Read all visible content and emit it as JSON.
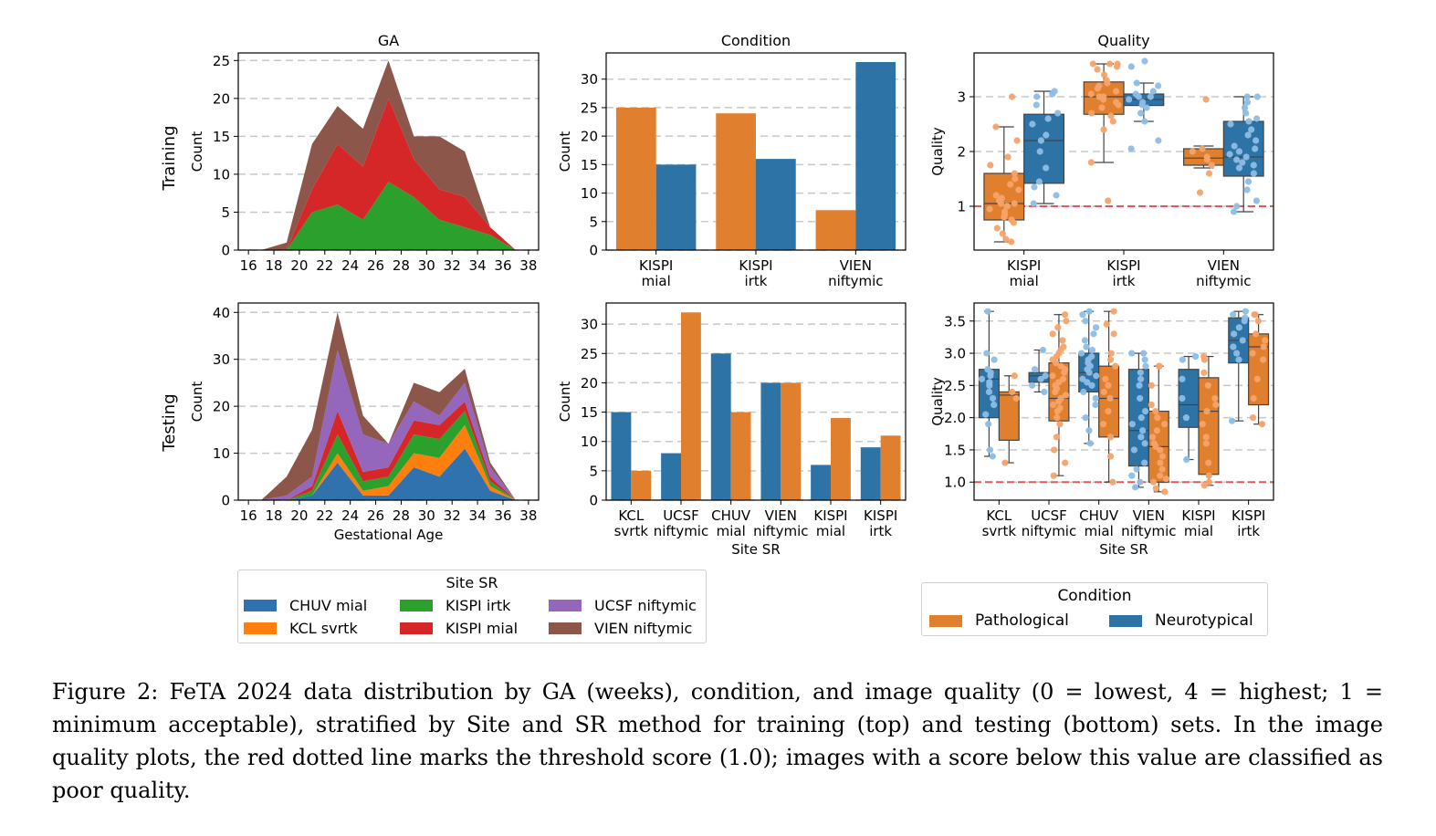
{
  "colors": {
    "pathological": "#e07f2e",
    "neurotypical": "#2e73a6",
    "pathological_points": "#f5a36a",
    "neurotypical_points": "#8dbde6",
    "threshold": "#e05a5a",
    "CHUV mial": "#2f72ad",
    "KCL svrtk": "#ff7f0e",
    "KISPI irtk": "#2ca02c",
    "KISPI mial": "#d62728",
    "UCSF niftymic": "#9467bd",
    "VIEN niftymic": "#8c564b"
  },
  "row_labels": [
    "Training",
    "Testing"
  ],
  "chart_data": [
    {
      "id": "training-ga",
      "type": "area",
      "stacked": true,
      "title": "GA",
      "xlabel": "",
      "ylabel": "Count",
      "x": [
        17,
        19,
        21,
        23,
        25,
        27,
        29,
        31,
        33,
        35,
        37
      ],
      "xticks": [
        16,
        18,
        20,
        22,
        24,
        26,
        28,
        30,
        32,
        34,
        36,
        38
      ],
      "xlim": [
        15.2,
        38.8
      ],
      "yticks": [
        0,
        5,
        10,
        15,
        20,
        25
      ],
      "ylim": [
        0,
        26
      ],
      "grid": "y-dashed",
      "series": [
        {
          "name": "KISPI irtk",
          "values": [
            0,
            0,
            5,
            6,
            4,
            9,
            7,
            4,
            3,
            2,
            0
          ]
        },
        {
          "name": "KISPI mial",
          "values": [
            0,
            0,
            3,
            8,
            7,
            11,
            5,
            4,
            4,
            1,
            0
          ]
        },
        {
          "name": "VIEN niftymic",
          "values": [
            0,
            1,
            6,
            5,
            5,
            5,
            3,
            7,
            6,
            0,
            0
          ]
        }
      ]
    },
    {
      "id": "testing-ga",
      "type": "area",
      "stacked": true,
      "title": "",
      "xlabel": "Gestational Age",
      "ylabel": "Count",
      "x": [
        17,
        19,
        21,
        23,
        25,
        27,
        29,
        31,
        33,
        35,
        37
      ],
      "xticks": [
        16,
        18,
        20,
        22,
        24,
        26,
        28,
        30,
        32,
        34,
        36,
        38
      ],
      "xlim": [
        15.2,
        38.8
      ],
      "yticks": [
        0,
        10,
        20,
        30,
        40
      ],
      "ylim": [
        0,
        42
      ],
      "grid": "y-dashed",
      "series": [
        {
          "name": "CHUV mial",
          "values": [
            0,
            0,
            1,
            8,
            1,
            1,
            7,
            5,
            11,
            2,
            0
          ]
        },
        {
          "name": "KCL svrtk",
          "values": [
            0,
            0,
            0,
            2,
            1,
            2,
            3,
            4,
            5,
            1,
            0
          ]
        },
        {
          "name": "KISPI irtk",
          "values": [
            0,
            0,
            1,
            4,
            2,
            2,
            4,
            4,
            3,
            1,
            0
          ]
        },
        {
          "name": "KISPI mial",
          "values": [
            0,
            0,
            1,
            5,
            2,
            2,
            3,
            3,
            2,
            1,
            0
          ]
        },
        {
          "name": "UCSF niftymic",
          "values": [
            0,
            1,
            2,
            13,
            8,
            5,
            4,
            2,
            4,
            2,
            0
          ]
        },
        {
          "name": "VIEN niftymic",
          "values": [
            0,
            4,
            10,
            8,
            4,
            0,
            4,
            5,
            3,
            1,
            0
          ]
        }
      ]
    },
    {
      "id": "training-condition",
      "type": "bar",
      "title": "Condition",
      "xlabel": "",
      "ylabel": "Count",
      "categories": [
        "KISPI\nmial",
        "KISPI\nirtk",
        "VIEN\nniftymic"
      ],
      "yticks": [
        0,
        5,
        10,
        15,
        20,
        25,
        30
      ],
      "ylim": [
        0,
        34.6
      ],
      "grid": "y-dashed",
      "series": [
        {
          "name": "Pathological",
          "values": [
            25,
            24,
            7
          ]
        },
        {
          "name": "Neurotypical",
          "values": [
            15,
            16,
            33
          ]
        }
      ]
    },
    {
      "id": "testing-condition",
      "type": "bar",
      "title": "",
      "xlabel": "Site SR",
      "ylabel": "Count",
      "categories": [
        "KCL\nsvrtk",
        "UCSF\nniftymic",
        "CHUV\nmial",
        "VIEN\nniftymic",
        "KISPI\nmial",
        "KISPI\nirtk"
      ],
      "yticks": [
        0,
        5,
        10,
        15,
        20,
        25,
        30
      ],
      "ylim": [
        0,
        33.6
      ],
      "grid": "y-dashed",
      "series": [
        {
          "name": "Neurotypical",
          "values": [
            15,
            8,
            25,
            20,
            6,
            9
          ]
        },
        {
          "name": "Pathological",
          "values": [
            5,
            32,
            15,
            20,
            14,
            11
          ]
        }
      ]
    },
    {
      "id": "training-quality",
      "type": "box",
      "title": "Quality",
      "xlabel": "",
      "ylabel": "Quality",
      "categories": [
        "KISPI\nmial",
        "KISPI\nirtk",
        "VIEN\nniftymic"
      ],
      "yticks": [
        1,
        2,
        3
      ],
      "ylim": [
        0.2,
        3.8
      ],
      "threshold": 1.0,
      "grid": "y-dashed",
      "boxes": [
        {
          "category": 0,
          "series": "Pathological",
          "whislo": 0.35,
          "q1": 0.75,
          "med": 1.05,
          "q3": 1.6,
          "whishi": 2.45,
          "points": [
            0.35,
            0.4,
            0.5,
            0.6,
            0.7,
            0.75,
            0.8,
            0.85,
            0.9,
            0.95,
            1.0,
            1.0,
            1.05,
            1.05,
            1.1,
            1.15,
            1.2,
            1.3,
            1.4,
            1.5,
            1.6,
            1.75,
            1.9,
            2.2,
            2.45,
            3.0
          ]
        },
        {
          "category": 0,
          "series": "Neurotypical",
          "whislo": 1.05,
          "q1": 1.42,
          "med": 2.2,
          "q3": 2.68,
          "whishi": 3.1,
          "points": [
            1.05,
            1.2,
            1.35,
            1.45,
            1.7,
            2.0,
            2.2,
            2.3,
            2.5,
            2.6,
            2.7,
            2.85,
            3.0,
            3.05,
            3.1
          ]
        },
        {
          "category": 1,
          "series": "Pathological",
          "whislo": 1.8,
          "q1": 2.68,
          "med": 3.0,
          "q3": 3.27,
          "whishi": 3.6,
          "points": [
            1.1,
            1.8,
            2.4,
            2.55,
            2.65,
            2.7,
            2.8,
            2.85,
            2.9,
            2.95,
            3.0,
            3.0,
            3.05,
            3.1,
            3.15,
            3.2,
            3.25,
            3.3,
            3.4,
            3.5,
            3.55,
            3.6,
            3.6,
            3.6
          ]
        },
        {
          "category": 1,
          "series": "Neurotypical",
          "whislo": 2.55,
          "q1": 2.84,
          "med": 2.95,
          "q3": 3.05,
          "whishi": 3.25,
          "points": [
            2.05,
            2.2,
            2.55,
            2.7,
            2.8,
            2.85,
            2.9,
            2.95,
            3.0,
            3.0,
            3.05,
            3.1,
            3.2,
            3.25,
            3.55,
            3.65
          ]
        },
        {
          "category": 2,
          "series": "Pathological",
          "whislo": 1.7,
          "q1": 1.75,
          "med": 1.88,
          "q3": 2.05,
          "whishi": 2.1,
          "points": [
            1.25,
            1.6,
            1.75,
            1.85,
            1.9,
            2.0,
            2.05,
            2.95
          ]
        },
        {
          "category": 2,
          "series": "Neurotypical",
          "whislo": 0.9,
          "q1": 1.55,
          "med": 1.9,
          "q3": 2.55,
          "whishi": 3.0,
          "points": [
            0.9,
            1.0,
            1.1,
            1.3,
            1.45,
            1.6,
            1.7,
            1.75,
            1.8,
            1.85,
            1.9,
            1.95,
            2.0,
            2.05,
            2.1,
            2.2,
            2.3,
            2.4,
            2.5,
            2.55,
            2.6,
            2.7,
            2.8,
            2.9,
            3.0,
            3.0
          ]
        }
      ]
    },
    {
      "id": "testing-quality",
      "type": "box",
      "title": "",
      "xlabel": "Site SR",
      "ylabel": "Quality",
      "categories": [
        "KCL\nsvrtk",
        "UCSF\nniftymic",
        "CHUV\nmial",
        "VIEN\nniftymic",
        "KISPI\nmial",
        "KISPI\nirtk"
      ],
      "yticks": [
        1.0,
        1.5,
        2.0,
        2.5,
        3.0,
        3.5
      ],
      "ylim": [
        0.72,
        3.78
      ],
      "threshold": 1.0,
      "grid": "y-dashed",
      "boxes": [
        {
          "category": 0,
          "series": "Neurotypical",
          "whislo": 1.4,
          "q1": 2.0,
          "med": 2.6,
          "q3": 2.75,
          "whishi": 3.65,
          "points": [
            1.4,
            1.5,
            1.9,
            2.05,
            2.2,
            2.3,
            2.4,
            2.5,
            2.55,
            2.6,
            2.65,
            2.7,
            2.75,
            2.9,
            3.0,
            3.65
          ]
        },
        {
          "category": 0,
          "series": "Pathological",
          "whislo": 1.3,
          "q1": 1.65,
          "med": 2.35,
          "q3": 2.4,
          "whishi": 2.65,
          "points": [
            1.3,
            2.3,
            2.4,
            2.65
          ]
        },
        {
          "category": 1,
          "series": "Neurotypical",
          "whislo": 2.4,
          "q1": 2.55,
          "med": 2.65,
          "q3": 2.7,
          "whishi": 3.05,
          "points": [
            2.4,
            2.5,
            2.6,
            2.65,
            2.75,
            3.05
          ]
        },
        {
          "category": 1,
          "series": "Pathological",
          "whislo": 1.1,
          "q1": 1.95,
          "med": 2.3,
          "q3": 2.85,
          "whishi": 3.6,
          "points": [
            1.1,
            1.3,
            1.5,
            1.7,
            1.9,
            2.0,
            2.1,
            2.15,
            2.2,
            2.3,
            2.35,
            2.4,
            2.5,
            2.6,
            2.7,
            2.8,
            2.9,
            3.0,
            3.1,
            3.2,
            3.3,
            3.4,
            3.5,
            3.6,
            2.25,
            2.45,
            2.55,
            2.65,
            2.75,
            2.85,
            2.95,
            3.05
          ]
        },
        {
          "category": 2,
          "series": "Neurotypical",
          "whislo": 1.6,
          "q1": 2.4,
          "med": 2.7,
          "q3": 3.0,
          "whishi": 3.65,
          "points": [
            1.6,
            1.8,
            2.0,
            2.2,
            2.3,
            2.4,
            2.5,
            2.6,
            2.65,
            2.7,
            2.75,
            2.8,
            2.85,
            2.9,
            3.0,
            3.05,
            3.1,
            3.2,
            3.3,
            3.4,
            3.5,
            3.6,
            3.65,
            2.55,
            2.95
          ]
        },
        {
          "category": 2,
          "series": "Pathological",
          "whislo": 1.0,
          "q1": 1.7,
          "med": 2.3,
          "q3": 2.8,
          "whishi": 3.65,
          "points": [
            1.0,
            1.4,
            1.7,
            1.9,
            2.1,
            2.3,
            2.4,
            2.6,
            2.8,
            2.9,
            3.0,
            3.3,
            3.45,
            3.65,
            2.5
          ]
        },
        {
          "category": 3,
          "series": "Neurotypical",
          "whislo": 0.92,
          "q1": 1.25,
          "med": 1.8,
          "q3": 2.75,
          "whishi": 3.0,
          "points": [
            0.92,
            1.0,
            1.1,
            1.2,
            1.3,
            1.5,
            1.6,
            1.7,
            1.8,
            1.9,
            2.0,
            2.1,
            2.3,
            2.5,
            2.6,
            2.7,
            2.8,
            2.9,
            3.0,
            3.0
          ]
        },
        {
          "category": 3,
          "series": "Pathological",
          "whislo": 0.85,
          "q1": 1.0,
          "med": 1.55,
          "q3": 2.1,
          "whishi": 2.8,
          "points": [
            0.85,
            0.9,
            1.0,
            1.05,
            1.1,
            1.2,
            1.3,
            1.4,
            1.5,
            1.55,
            1.6,
            1.7,
            1.8,
            1.9,
            2.0,
            2.1,
            2.2,
            2.5,
            2.8,
            2.8
          ]
        },
        {
          "category": 4,
          "series": "Neurotypical",
          "whislo": 1.35,
          "q1": 1.85,
          "med": 2.2,
          "q3": 2.75,
          "whishi": 2.95,
          "points": [
            1.35,
            2.0,
            2.3,
            2.9,
            2.95,
            2.6
          ]
        },
        {
          "category": 4,
          "series": "Pathological",
          "whislo": 0.95,
          "q1": 1.12,
          "med": 2.1,
          "q3": 2.62,
          "whishi": 2.95,
          "points": [
            0.95,
            1.0,
            1.3,
            1.6,
            1.9,
            2.1,
            2.3,
            2.5,
            2.9,
            2.95,
            2.2,
            1.7,
            2.7,
            1.1
          ]
        },
        {
          "category": 5,
          "series": "Neurotypical",
          "whislo": 1.95,
          "q1": 2.85,
          "med": 3.2,
          "q3": 3.55,
          "whishi": 3.65,
          "points": [
            1.95,
            2.9,
            3.0,
            3.1,
            3.2,
            3.3,
            3.4,
            3.5,
            3.55,
            3.6,
            3.65
          ]
        },
        {
          "category": 5,
          "series": "Pathological",
          "whislo": 1.9,
          "q1": 2.2,
          "med": 3.1,
          "q3": 3.3,
          "whishi": 3.6,
          "points": [
            1.9,
            2.0,
            2.3,
            2.6,
            2.9,
            3.0,
            3.1,
            3.2,
            3.3,
            3.5,
            3.6,
            3.6
          ]
        }
      ]
    }
  ],
  "legend_site": {
    "title": "Site SR",
    "items": [
      {
        "label": "CHUV mial",
        "color": "#2f72ad"
      },
      {
        "label": "KCL svrtk",
        "color": "#ff7f0e"
      },
      {
        "label": "KISPI irtk",
        "color": "#2ca02c"
      },
      {
        "label": "KISPI mial",
        "color": "#d62728"
      },
      {
        "label": "UCSF niftymic",
        "color": "#9467bd"
      },
      {
        "label": "VIEN niftymic",
        "color": "#8c564b"
      }
    ]
  },
  "legend_condition": {
    "title": "Condition",
    "items": [
      {
        "label": "Pathological",
        "color": "#e07f2e"
      },
      {
        "label": "Neurotypical",
        "color": "#2e73a6"
      }
    ]
  },
  "caption": "Figure 2: FeTA 2024 data distribution by GA (weeks), condition, and image quality (0 = lowest, 4 = highest; 1 = minimum acceptable), stratified by Site and SR method for training (top) and testing (bottom) sets. In the image quality plots, the red dotted line marks the threshold score (1.0); images with a score below this value are classified as poor quality."
}
